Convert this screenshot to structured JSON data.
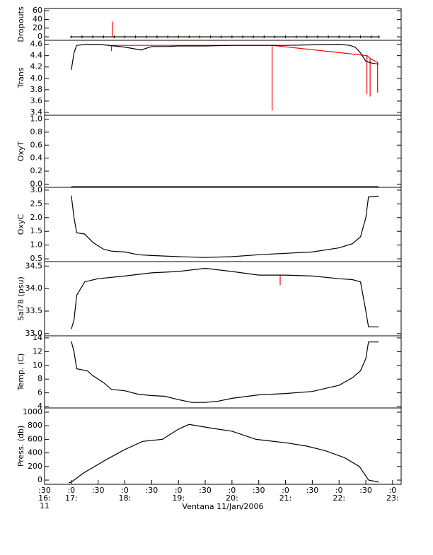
{
  "chart_data": [
    {
      "type": "line",
      "ylabel": "Dropouts",
      "xlim": [
        16.5,
        23.16
      ],
      "ylim": [
        -8,
        65
      ],
      "yticks": [
        0,
        20,
        40,
        60
      ],
      "series": [
        {
          "color": "#000000",
          "marker": "+",
          "x": [
            17.0,
            17.2,
            17.4,
            17.6,
            17.8,
            18.0,
            18.2,
            18.4,
            18.6,
            18.8,
            19.0,
            19.2,
            19.4,
            19.6,
            19.8,
            20.0,
            20.2,
            20.4,
            20.6,
            20.8,
            21.0,
            21.2,
            21.4,
            21.6,
            21.8,
            22.0,
            22.2,
            22.4,
            22.6,
            22.74
          ],
          "values": [
            0,
            0,
            0,
            0,
            0,
            0,
            0,
            0,
            0,
            0,
            0,
            0,
            0,
            0,
            0,
            0,
            0,
            0,
            0,
            0,
            0,
            0,
            0,
            0,
            0,
            0,
            0,
            0,
            0,
            0
          ]
        },
        {
          "color": "#ff0000",
          "x": [
            17.77,
            17.77,
            17.77
          ],
          "values": [
            0,
            35,
            0
          ]
        }
      ]
    },
    {
      "type": "line",
      "ylabel": "Trans",
      "xlim": [
        16.5,
        23.16
      ],
      "ylim": [
        3.35,
        4.67
      ],
      "yticks": [
        3.4,
        3.6,
        3.8,
        {
          "value": 4,
          "label": "4.0"
        },
        4.2,
        4.4,
        4.6
      ],
      "series": [
        {
          "color": "#ff0000",
          "x": [
            17.75,
            17.75,
            17.75,
            20.75,
            20.75,
            20.75,
            22.52,
            22.52,
            22.52,
            22.58,
            22.58,
            22.58,
            22.72,
            22.72,
            22.72
          ],
          "values": [
            4.58,
            4.48,
            4.58,
            4.58,
            3.43,
            4.58,
            4.4,
            3.72,
            4.4,
            4.35,
            3.68,
            4.35,
            4.28,
            3.75,
            4.28
          ]
        },
        {
          "color": "#000000",
          "x": [
            17.0,
            17.05,
            17.1,
            17.3,
            17.5,
            18.0,
            18.3,
            18.5,
            18.8,
            19.0,
            19.5,
            20.0,
            20.5,
            21.0,
            21.5,
            22.0,
            22.2,
            22.3,
            22.4,
            22.5,
            22.6,
            22.74
          ],
          "values": [
            4.15,
            4.45,
            4.58,
            4.6,
            4.6,
            4.55,
            4.5,
            4.56,
            4.56,
            4.57,
            4.57,
            4.58,
            4.58,
            4.58,
            4.59,
            4.6,
            4.58,
            4.55,
            4.45,
            4.3,
            4.27,
            4.25
          ]
        }
      ]
    },
    {
      "type": "line",
      "ylabel": "OxyT",
      "xlim": [
        16.5,
        23.16
      ],
      "ylim": [
        -0.05,
        1.06
      ],
      "yticks": [
        {
          "value": 0,
          "label": "0.0"
        },
        0.2,
        0.4,
        0.6,
        0.8,
        {
          "value": 1,
          "label": "1.0"
        }
      ],
      "series": [
        {
          "color": "#000000",
          "x": [
            17.0,
            22.74
          ],
          "values": [
            -0.04,
            -0.04
          ]
        }
      ]
    },
    {
      "type": "line",
      "ylabel": "OxyC",
      "xlim": [
        16.5,
        23.16
      ],
      "ylim": [
        0.4,
        3.1
      ],
      "yticks": [
        0.5,
        {
          "value": 1,
          "label": "1.0"
        },
        1.5,
        {
          "value": 2,
          "label": "2.0"
        },
        2.5,
        {
          "value": 3,
          "label": "3.0"
        }
      ],
      "series": [
        {
          "color": "#000000",
          "x": [
            17.0,
            17.05,
            17.1,
            17.25,
            17.4,
            17.6,
            17.75,
            18.0,
            18.25,
            18.5,
            19.0,
            19.5,
            20.0,
            20.5,
            21.0,
            21.5,
            22.0,
            22.25,
            22.4,
            22.5,
            22.55,
            22.74
          ],
          "values": [
            2.8,
            2.0,
            1.45,
            1.4,
            1.1,
            0.85,
            0.78,
            0.75,
            0.65,
            0.62,
            0.58,
            0.55,
            0.58,
            0.65,
            0.7,
            0.75,
            0.9,
            1.05,
            1.3,
            2.0,
            2.75,
            2.78
          ]
        }
      ]
    },
    {
      "type": "line",
      "ylabel": "Sal78 (psu)",
      "xlim": [
        16.5,
        23.16
      ],
      "ylim": [
        32.95,
        34.6
      ],
      "yticks": [
        {
          "value": 33,
          "label": "33.0"
        },
        33.5,
        {
          "value": 34,
          "label": "34.0"
        },
        34.5
      ],
      "series": [
        {
          "color": "#ff0000",
          "x": [
            20.9,
            20.9,
            20.9
          ],
          "values": [
            34.3,
            34.08,
            34.3
          ]
        },
        {
          "color": "#000000",
          "x": [
            17.0,
            17.05,
            17.1,
            17.25,
            17.5,
            18.0,
            18.5,
            19.0,
            19.5,
            20.0,
            20.5,
            21.0,
            21.5,
            22.0,
            22.25,
            22.4,
            22.5,
            22.55,
            22.74
          ],
          "values": [
            33.1,
            33.3,
            33.85,
            34.15,
            34.22,
            34.28,
            34.35,
            34.38,
            34.45,
            34.38,
            34.3,
            34.3,
            34.28,
            34.22,
            34.2,
            34.15,
            33.5,
            33.15,
            33.15
          ]
        }
      ]
    },
    {
      "type": "line",
      "ylabel": "Temp. (C)",
      "xlim": [
        16.5,
        23.16
      ],
      "ylim": [
        3.8,
        14.3
      ],
      "yticks": [
        4,
        6,
        8,
        10,
        12,
        14
      ],
      "series": [
        {
          "color": "#000000",
          "x": [
            17.0,
            17.05,
            17.1,
            17.3,
            17.4,
            17.6,
            17.75,
            18.0,
            18.25,
            18.5,
            18.75,
            19.0,
            19.25,
            19.5,
            19.75,
            20.0,
            20.5,
            21.0,
            21.5,
            22.0,
            22.25,
            22.4,
            22.5,
            22.55,
            22.74
          ],
          "values": [
            13.5,
            12,
            9.5,
            9.2,
            8.5,
            7.5,
            6.5,
            6.3,
            5.8,
            5.6,
            5.5,
            5.0,
            4.6,
            4.6,
            4.8,
            5.2,
            5.7,
            5.9,
            6.2,
            7.1,
            8.2,
            9.2,
            11,
            13.4,
            13.4
          ]
        }
      ]
    },
    {
      "type": "line",
      "ylabel": "Press. (db)",
      "xlabel": "Ventana 11/Jan/2006",
      "xlim": [
        16.5,
        23.16
      ],
      "ylim": [
        -62,
        1062
      ],
      "yticks": [
        0,
        200,
        400,
        600,
        800,
        1000
      ],
      "xticks": [
        {
          "value": 16.5,
          "label": ":30"
        },
        {
          "value": 17,
          "label": ":0"
        },
        {
          "value": 17.5,
          "label": ":30"
        },
        {
          "value": 18,
          "label": ":0"
        },
        {
          "value": 18.5,
          "label": ":30"
        },
        {
          "value": 19,
          "label": ":0"
        },
        {
          "value": 19.5,
          "label": ":30"
        },
        {
          "value": 20,
          "label": ":0"
        },
        {
          "value": 20.5,
          "label": ":30"
        },
        {
          "value": 21,
          "label": ":0"
        },
        {
          "value": 21.5,
          "label": ":30"
        },
        {
          "value": 22,
          "label": ":0"
        },
        {
          "value": 22.5,
          "label": ":30"
        },
        {
          "value": 23,
          "label": ":0"
        }
      ],
      "x_hour_labels": [
        {
          "value": 16.5,
          "label": "16:"
        },
        {
          "value": 17,
          "label": "17:"
        },
        {
          "value": 18,
          "label": "18:"
        },
        {
          "value": 19,
          "label": "19:"
        },
        {
          "value": 20,
          "label": "20:"
        },
        {
          "value": 21,
          "label": "21:"
        },
        {
          "value": 22,
          "label": "22:"
        },
        {
          "value": 23,
          "label": "23:"
        }
      ],
      "x_day_labels": [
        {
          "value": 16.5,
          "label": "11"
        }
      ],
      "series": [
        {
          "color": "#000000",
          "x": [
            16.95,
            17.0,
            17.22,
            17.65,
            18.0,
            18.33,
            18.7,
            19.0,
            19.2,
            19.65,
            20.0,
            20.45,
            21.0,
            21.4,
            21.75,
            22.1,
            22.38,
            22.55,
            22.74
          ],
          "values": [
            -40,
            -30,
            100,
            300,
            450,
            570,
            600,
            750,
            820,
            760,
            720,
            600,
            550,
            500,
            430,
            330,
            200,
            0,
            -30
          ]
        }
      ]
    }
  ]
}
